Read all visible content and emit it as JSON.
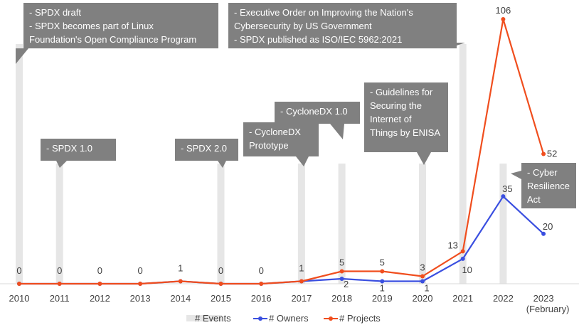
{
  "chart_data": {
    "type": "line",
    "categories": [
      "2010",
      "2011",
      "2012",
      "2013",
      "2014",
      "2015",
      "2016",
      "2017",
      "2018",
      "2019",
      "2020",
      "2021",
      "2022",
      "2023"
    ],
    "category_notes": {
      "2023": "(February)"
    },
    "ylim": [
      0,
      110
    ],
    "grid": false,
    "legend_position": "bottom",
    "series": [
      {
        "name": "# Events",
        "type": "event-markers",
        "color": "#e6e6e6",
        "markers": [
          {
            "x": "2010",
            "callout": [
              "- SPDX draft",
              "- SPDX becomes part of Linux",
              "Foundation's Open Compliance Program"
            ]
          },
          {
            "x": "2011",
            "callout": [
              "- SPDX 1.0"
            ]
          },
          {
            "x": "2015",
            "callout": [
              "- SPDX 2.0"
            ]
          },
          {
            "x": "2017",
            "callout": [
              "- CycloneDX",
              "Prototype"
            ]
          },
          {
            "x": "2018",
            "callout": [
              "- CycloneDX 1.0"
            ]
          },
          {
            "x": "2020",
            "callout": [
              "- Guidelines for",
              "Securing the",
              "Internet of",
              "Things by ENISA"
            ]
          },
          {
            "x": "2021",
            "callout": [
              "- Executive Order on Improving the Nation's",
              "Cybersecurity by US Government",
              "- SPDX published as ISO/IEC 5962:2021"
            ]
          },
          {
            "x": "2022",
            "callout": [
              "- Cyber",
              "Resilience",
              "Act"
            ]
          }
        ]
      },
      {
        "name": "# Owners",
        "color": "#3a4fe0",
        "values": [
          0,
          0,
          0,
          0,
          1,
          0,
          0,
          1,
          2,
          1,
          1,
          10,
          35,
          20
        ]
      },
      {
        "name": "# Projects",
        "color": "#f04e1e",
        "values": [
          0,
          0,
          0,
          0,
          1,
          0,
          0,
          1,
          5,
          5,
          3,
          13,
          106,
          52
        ]
      }
    ],
    "data_labels": [
      {
        "x": "2010",
        "text": "0"
      },
      {
        "x": "2011",
        "text": "0"
      },
      {
        "x": "2012",
        "text": "0"
      },
      {
        "x": "2013",
        "text": "0"
      },
      {
        "x": "2014",
        "text": "1"
      },
      {
        "x": "2015",
        "text": "0"
      },
      {
        "x": "2016",
        "text": "0"
      },
      {
        "x": "2017",
        "text": "1"
      },
      {
        "x": "2018",
        "text": "5",
        "series": "# Projects"
      },
      {
        "x": "2018",
        "text": "2",
        "series": "# Owners"
      },
      {
        "x": "2019",
        "text": "5",
        "series": "# Projects"
      },
      {
        "x": "2019",
        "text": "1",
        "series": "# Owners"
      },
      {
        "x": "2020",
        "text": "3",
        "series": "# Projects"
      },
      {
        "x": "2020",
        "text": "1",
        "series": "# Owners"
      },
      {
        "x": "2021",
        "text": "13",
        "series": "# Projects"
      },
      {
        "x": "2021",
        "text": "10",
        "series": "# Owners"
      },
      {
        "x": "2022",
        "text": "106",
        "series": "# Projects"
      },
      {
        "x": "2022",
        "text": "35",
        "series": "# Owners"
      },
      {
        "x": "2023",
        "text": "52",
        "series": "# Projects"
      },
      {
        "x": "2023",
        "text": "20",
        "series": "# Owners"
      }
    ]
  }
}
